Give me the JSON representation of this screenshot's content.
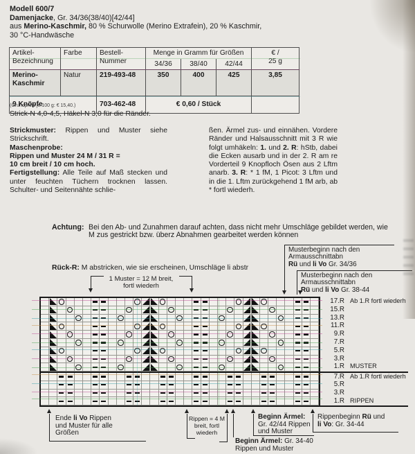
{
  "header": {
    "model": "Modell 600/7",
    "garment_bold": "Damenjacke",
    "garment_rest": ", Gr. 34/36(38/40)[42/44]",
    "material_pre": "aus ",
    "material_bold": "Merino-Kaschmir,",
    "material_rest": " 80 % Schurwolle (Merino Extrafein), 20 % Kaschmir,",
    "care": "30 °C-Handwäsche"
  },
  "yarn_table": {
    "h_artikel_1": "Artikel-",
    "h_artikel_2": "Bezeichnung",
    "h_farbe": "Farbe",
    "h_bestell_1": "Bestell-",
    "h_bestell_2": "Nummer",
    "h_menge": "Menge in Gramm für Größen",
    "sizes": [
      "34/36",
      "38/40",
      "42/44"
    ],
    "h_preis_1": "€ /",
    "h_preis_2": "25 g",
    "row1": {
      "name_1": "Merino-",
      "name_2": "Kaschmir",
      "farbe": "Natur",
      "nummer": "219-493-48",
      "amounts": [
        "350",
        "400",
        "425"
      ],
      "preis": "3,85"
    },
    "row2": {
      "name": "9 Knöpfe",
      "nummer": "703-462-48",
      "preis": "€ 0,60 / Stück"
    },
    "footnote": "(Grundpreis je 100 g: € 15,40.)"
  },
  "needles_line": "Strick-N 4,0-4,5, Häkel-N 3,0 für die Ränder.",
  "instructions": {
    "l1b": "Strickmuster:",
    "l1": " Rippen und Muster siehe Strickschrift.",
    "l2b": "Maschenprobe:",
    "l3b": "Rippen und Muster 24 M / 31 R =",
    "l4b": "10 cm breit / 10 cm hoch.",
    "l5b": "Fertigstellung:",
    "l5": " Alle Teile auf Maß stecken und unter feuchten Tüchern trocknen lassen. Schulter- und Seitennähte schlie-",
    "r1": "ßen. Ärmel zus- und einnähen. Vordere Ränder und Halsausschnitt mit 3 R wie folgt umhäkeln: ",
    "r2b": "1.",
    "r3": " und ",
    "r4b": "2. R",
    "r5": ": hStb, dabei die Ecken ausarb und in der 2. R am re Vorderteil 9 Knopfloch Ösen aus 2 Lftm anarb. ",
    "r6b": "3. R",
    "r7": ": * 1 fM, 1 Picot: 3 Lftm und in die 1. Lftm zurückgehend 1 fM arb, ab * fortl wiederh."
  },
  "achtung": {
    "label": "Achtung:",
    "text": "Bei den Ab- und Zunahmen darauf achten, dass nicht mehr Umschläge gebildet werden, wie M zus gestrickt bzw. überz Abnahmen gearbeitet werden können"
  },
  "rueck": {
    "label": "Rück-R:",
    "text": " M abstricken, wie sie erscheinen, Umschläge li abstr"
  },
  "chart_annotations": {
    "muster_bracket_l1": "1 Muster = 12 M breit,",
    "muster_bracket_l2": "fortl wiederh",
    "box1": {
      "l1": "Musterbeginn nach den",
      "l2": "Armausschnittabn",
      "l3b1": "Rü",
      "l3m": " und ",
      "l3b2": "li Vo",
      "l3r": " Gr. 34/36"
    },
    "box2": {
      "l1": "Musterbeginn nach den",
      "l2": "Armausschnittabn",
      "l3b1": "Rü",
      "l3m": " und ",
      "l3b2": "li Vo",
      "l3r": " Gr. 38-44"
    },
    "ende": {
      "l1a": "Ende ",
      "l1b": "li Vo",
      "l1c": " Rippen",
      "l2": "und Muster für alle",
      "l3": "Größen"
    },
    "rippen_bracket": {
      "l1": "Rippen = 4 M",
      "l2": "breit, fortl",
      "l3": "wiederh"
    },
    "beginn_34_40": {
      "b": "Beginn Ärmel:",
      "r": " Gr. 34-40",
      "l2": "Rippen und Muster"
    },
    "beginn_42_44": {
      "b": "Beginn Ärmel:",
      "l2": "Gr. 42/44 Rippen",
      "l3": "und Muster"
    },
    "rippenbeginn": {
      "l1a": "Rippenbeginn ",
      "l1b": "Rü",
      "l1c": " und",
      "l2b": "li Vo",
      "l2r": ": Gr. 34-44"
    }
  },
  "chart_data": {
    "type": "knitting-chart",
    "columns": 33,
    "muster_repeat_stitches": 12,
    "rippen_repeat_stitches": 4,
    "legend": {
      "L": "black lower-left triangle (decrease)",
      "R": "black lower-right triangle (decrease)",
      "O": "yarn over",
      "-": "purl stitch",
      ".": "knit / empty square"
    },
    "muster_section_label": "MUSTER",
    "rippen_section_label": "RIPPEN",
    "muster_rows": [
      {
        "label": "17.R",
        "note": "Ab 1.R fortl wiederh",
        "cells": ".LO...--...ORLO...--...ORLO...--."
      },
      {
        "label": "15.R",
        "cells": ".L.O..--..O.RL.O..--..O.RL.O..--."
      },
      {
        "label": "13.R",
        "cells": ".L..O.--.O..RL..O.--.O..RL..O.--."
      },
      {
        "label": "11.R",
        "cells": ".LO...--...ORLO...--...ORLO...--."
      },
      {
        "label": "9.R",
        "cells": ".L.O..--..O.RL.O..--..O.RL.O..--."
      },
      {
        "label": "7.R",
        "cells": ".L..O.--.O..RL..O.--.O..RL..O.--."
      },
      {
        "label": "5.R",
        "cells": ".LO...--...ORLO...--...ORLO...--."
      },
      {
        "label": "3.R",
        "cells": ".L.O..--..O.RL.O..--..O.RL.O..--."
      },
      {
        "label": "1.R",
        "note": "MUSTER",
        "cells": ".L..O.--.O..RL..O.--.O..RL..O.--."
      }
    ],
    "rippen_rows": [
      {
        "label": "7.R",
        "note": "Ab 1.R fortl wiederh",
        "cells": "..--..--..--..--..--..--..--..--."
      },
      {
        "label": "5.R",
        "cells": "..--..--..--..--..--..--..--..--."
      },
      {
        "label": "3.R",
        "cells": "..--..--..--..--..--..--..--..--."
      },
      {
        "label": "1.R",
        "note": "RIPPEN",
        "cells": "..--..--..--..--..--..--..--..--."
      }
    ]
  }
}
